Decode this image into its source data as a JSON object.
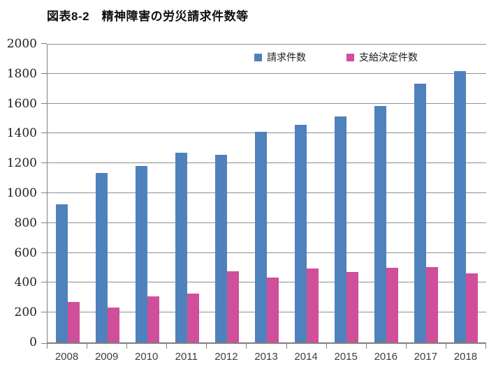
{
  "chart_data": {
    "type": "bar",
    "title": "図表8-2　精神障害の労災請求件数等",
    "categories": [
      "2008",
      "2009",
      "2010",
      "2011",
      "2012",
      "2013",
      "2014",
      "2015",
      "2016",
      "2017",
      "2018"
    ],
    "series": [
      {
        "name": "請求件数",
        "color": "#4f81bd",
        "values": [
          927,
          1136,
          1181,
          1272,
          1257,
          1409,
          1456,
          1515,
          1586,
          1732,
          1820
        ]
      },
      {
        "name": "支給決定件数",
        "color": "#cf4f9b",
        "values": [
          269,
          234,
          308,
          325,
          475,
          436,
          497,
          472,
          498,
          506,
          465
        ]
      }
    ],
    "xlabel": "",
    "ylabel": "",
    "ylim": [
      0,
      2000
    ],
    "ytick_step": 200,
    "yticks": [
      "0",
      "200",
      "400",
      "600",
      "800",
      "1000",
      "1200",
      "1400",
      "1600",
      "1800",
      "2000"
    ],
    "grid": "horizontal-on",
    "legend_position": "top-inside"
  },
  "style": {
    "grid_color": "#8f8f8f",
    "axis_color": "#7f7f7f",
    "background": "#ffffff",
    "title_color": "#111111"
  }
}
